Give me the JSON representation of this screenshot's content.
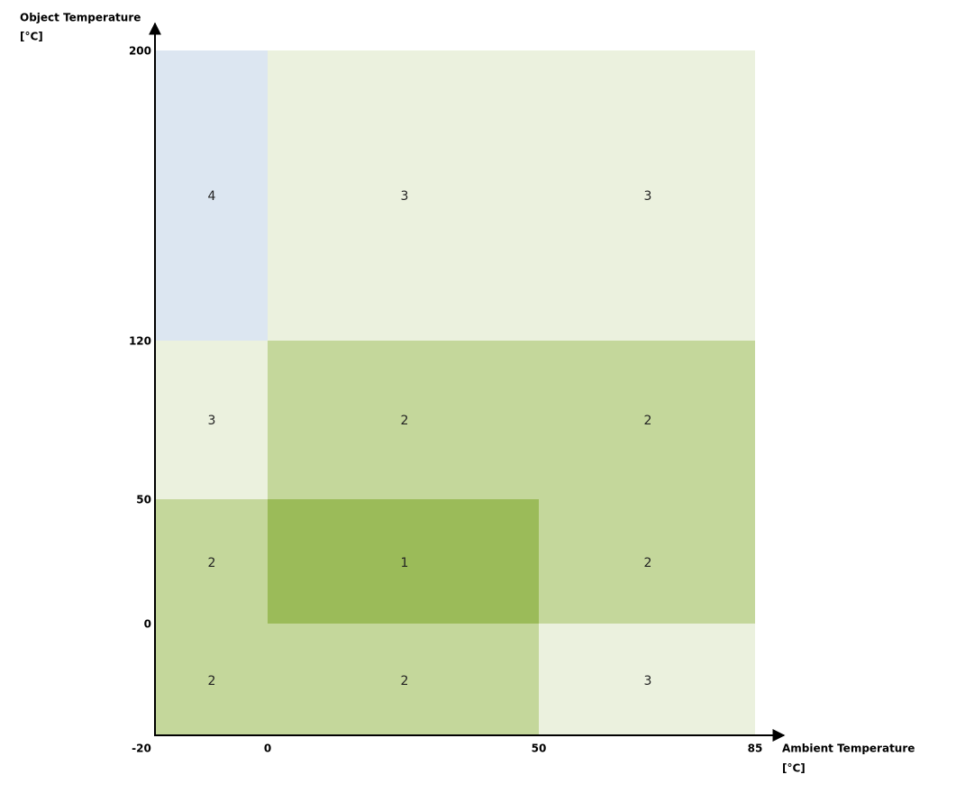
{
  "y_axis": {
    "title": "Object Temperature",
    "unit": "[°C]",
    "ticks": [
      "200",
      "120",
      "50",
      "0"
    ]
  },
  "x_axis": {
    "title": "Ambient Temperature",
    "unit": "[°C]",
    "ticks": [
      "0",
      "50",
      "85"
    ]
  },
  "origin": "-20",
  "zones": [
    {
      "label": "4"
    },
    {
      "label": "3"
    },
    {
      "label": "3"
    },
    {
      "label": "3"
    },
    {
      "label": "2"
    },
    {
      "label": "2"
    },
    {
      "label": "2"
    },
    {
      "label": "1"
    },
    {
      "label": "2"
    },
    {
      "label": "2"
    },
    {
      "label": "2"
    },
    {
      "label": "3"
    }
  ]
}
